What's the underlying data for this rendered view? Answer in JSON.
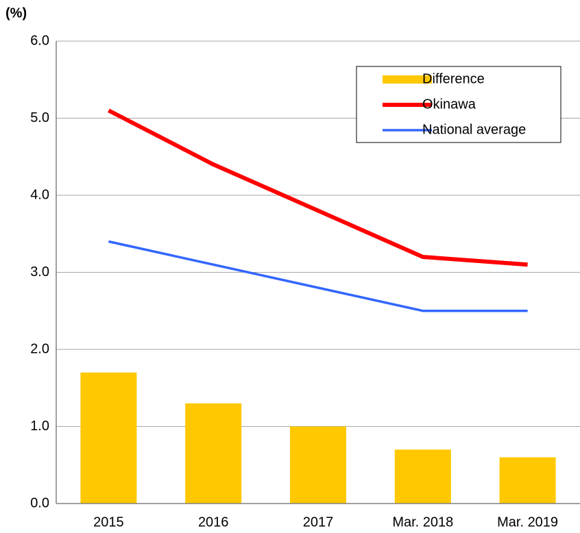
{
  "chart_data": {
    "type": "bar",
    "ylabel": "(%)",
    "categories": [
      "2015",
      "2016",
      "2017",
      "Mar. 2018",
      "Mar. 2019"
    ],
    "series": [
      {
        "name": "Difference",
        "type": "bar",
        "color": "#ffc800",
        "values": [
          1.7,
          1.3,
          1.0,
          0.7,
          0.6
        ]
      },
      {
        "name": "Okinawa",
        "type": "line",
        "color": "#ff0000",
        "values": [
          5.1,
          4.4,
          3.8,
          3.2,
          3.1
        ]
      },
      {
        "name": "National average",
        "type": "line",
        "color": "#3366ff",
        "values": [
          3.4,
          3.1,
          2.8,
          2.5,
          2.5
        ]
      }
    ],
    "ylim": [
      0,
      6
    ],
    "yticks": [
      {
        "value": 0,
        "label": "0.0"
      },
      {
        "value": 1,
        "label": "1.0"
      },
      {
        "value": 2,
        "label": "2.0"
      },
      {
        "value": 3,
        "label": "3.0"
      },
      {
        "value": 4,
        "label": "4.0"
      },
      {
        "value": 5,
        "label": "5.0"
      },
      {
        "value": 6,
        "label": "6.0"
      }
    ],
    "grid": true,
    "legend": "upper right"
  }
}
